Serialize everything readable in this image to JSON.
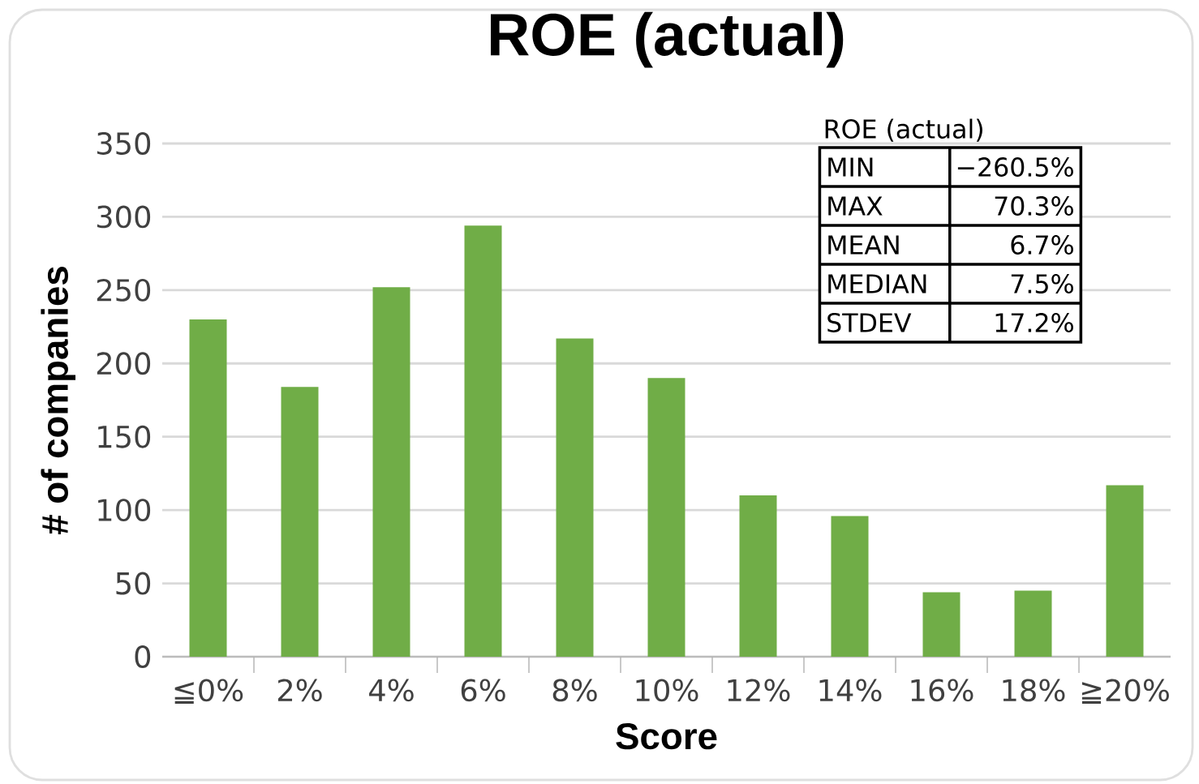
{
  "chart_data": {
    "type": "bar",
    "title": "ROE (actual)",
    "xlabel": "Score",
    "ylabel": "# of companies",
    "categories": [
      "≦0%",
      "2%",
      "4%",
      "6%",
      "8%",
      "10%",
      "12%",
      "14%",
      "16%",
      "18%",
      "≧20%"
    ],
    "values": [
      230,
      184,
      252,
      294,
      217,
      190,
      110,
      96,
      44,
      45,
      117
    ],
    "color": "#70ad47",
    "ylim": [
      0,
      350
    ],
    "yticks": [
      0,
      50,
      100,
      150,
      200,
      250,
      300,
      350
    ],
    "grid": "y",
    "annotations": [
      "ROE (actual)",
      "MIN",
      "−260.5%",
      "MAX",
      "70.3%",
      "MEAN",
      "6.7%",
      "MEDIAN",
      "7.5%",
      "STDEV",
      "17.2%"
    ]
  }
}
